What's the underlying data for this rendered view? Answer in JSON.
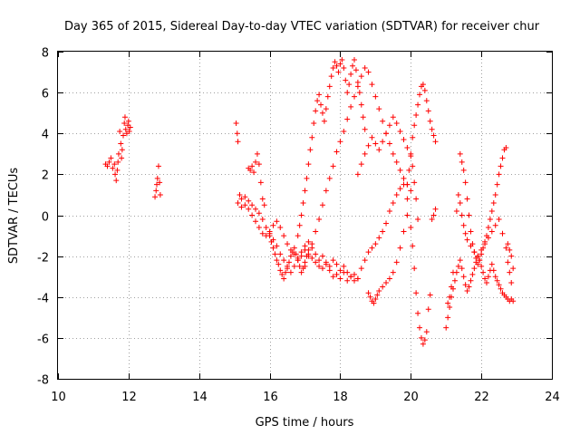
{
  "chart_data": {
    "type": "scatter",
    "title": "Day 365 of 2015, Sidereal Day-to-day VTEC variation (SDTVAR) for receiver chur",
    "xlabel": "GPS time / hours",
    "ylabel": "SDTVAR / TECUs",
    "xlim": [
      10,
      24
    ],
    "ylim": [
      -8,
      8
    ],
    "xticks": [
      "10",
      "12",
      "14",
      "16",
      "18",
      "20",
      "22",
      "24"
    ],
    "yticks": [
      "8",
      "6",
      "4",
      "2",
      "0",
      "-2",
      "-4",
      "-6",
      "-8"
    ],
    "grid": true,
    "marker": "plus",
    "series_color": "#ff0000",
    "series": [
      {
        "name": "SDTVAR",
        "x": [
          11.35,
          11.4,
          11.45,
          11.5,
          11.55,
          11.6,
          11.62,
          11.65,
          11.68,
          11.7,
          11.72,
          11.75,
          11.78,
          11.8,
          11.82,
          11.85,
          11.88,
          11.9,
          11.92,
          11.95,
          11.98,
          12.0,
          12.02,
          12.05,
          12.75,
          12.78,
          12.8,
          12.82,
          12.85,
          12.88,
          12.9,
          15.05,
          15.08,
          15.1,
          15.15,
          15.2,
          15.3,
          15.4,
          15.5,
          15.6,
          15.7,
          15.8,
          15.9,
          16.0,
          16.1,
          16.2,
          16.3,
          16.4,
          16.5,
          16.6,
          16.7,
          16.8,
          16.9,
          17.0,
          17.1,
          17.2,
          17.3,
          17.4,
          17.5,
          17.6,
          17.7,
          17.8,
          17.9,
          18.0,
          18.1,
          18.2,
          18.3,
          18.4,
          18.5,
          18.6,
          18.7,
          18.8,
          18.9,
          19.0,
          19.1,
          19.2,
          19.3,
          19.4,
          19.5,
          19.6,
          19.7,
          19.8,
          19.9,
          20.0,
          20.05,
          20.1,
          20.15,
          20.2,
          20.25,
          20.3,
          20.35,
          20.4,
          20.45,
          20.5,
          20.55,
          15.1,
          15.2,
          15.3,
          15.4,
          15.5,
          15.6,
          15.7,
          15.8,
          15.9,
          16.0,
          16.1,
          16.2,
          16.3,
          16.4,
          16.5,
          16.6,
          16.7,
          16.8,
          16.9,
          17.0,
          17.1,
          17.2,
          17.3,
          17.4,
          17.5,
          17.6,
          17.7,
          17.8,
          17.9,
          18.0,
          18.1,
          18.2,
          18.3,
          18.4,
          18.5,
          15.4,
          15.45,
          15.5,
          15.55,
          15.6,
          15.65,
          15.7,
          15.75,
          15.8,
          15.85,
          16.0,
          16.05,
          16.1,
          16.15,
          16.2,
          16.25,
          16.3,
          16.35,
          16.4,
          16.45,
          16.5,
          16.55,
          16.6,
          16.65,
          16.7,
          16.75,
          16.8,
          16.85,
          16.9,
          16.95,
          17.0,
          17.05,
          17.1,
          16.8,
          16.85,
          16.9,
          16.95,
          17.0,
          17.05,
          17.1,
          17.15,
          17.2,
          17.25,
          17.3,
          17.35,
          17.4,
          17.45,
          17.5,
          17.55,
          17.6,
          17.65,
          17.7,
          17.75,
          17.8,
          17.85,
          17.9,
          17.95,
          18.0,
          18.05,
          18.1,
          18.15,
          18.2,
          18.25,
          18.3,
          18.35,
          18.4,
          18.45,
          18.5,
          18.55,
          18.6,
          18.65,
          18.7,
          17.0,
          17.1,
          17.2,
          17.3,
          17.4,
          17.5,
          17.6,
          17.7,
          17.8,
          17.9,
          18.0,
          18.1,
          18.2,
          18.3,
          18.4,
          18.5,
          18.6,
          18.7,
          18.8,
          18.9,
          19.0,
          19.1,
          19.2,
          19.3,
          19.4,
          19.5,
          19.6,
          19.7,
          19.8,
          19.9,
          20.0,
          18.5,
          18.6,
          18.7,
          18.8,
          18.9,
          19.0,
          19.1,
          19.2,
          19.3,
          19.4,
          19.5,
          19.6,
          19.7,
          19.8,
          19.9,
          20.0,
          20.05,
          20.1,
          20.15,
          20.2,
          18.8,
          18.85,
          18.9,
          18.95,
          19.0,
          19.05,
          19.1,
          19.2,
          19.3,
          19.4,
          19.5,
          19.6,
          19.7,
          19.8,
          19.9,
          19.9,
          19.95,
          20.0,
          20.05,
          20.1,
          20.15,
          20.2,
          20.25,
          20.3,
          20.35,
          20.4,
          20.45,
          20.5,
          20.55,
          20.6,
          20.65,
          20.7,
          20.6,
          20.65,
          20.7,
          21.0,
          21.05,
          21.1,
          21.15,
          21.2,
          21.25,
          21.3,
          21.35,
          21.4,
          21.45,
          21.5,
          21.55,
          21.6,
          21.65,
          21.7,
          21.75,
          21.8,
          21.85,
          21.9,
          21.95,
          22.0,
          22.05,
          22.1,
          22.15,
          22.2,
          22.25,
          22.3,
          22.35,
          22.4,
          22.45,
          22.5,
          22.55,
          22.6,
          22.65,
          22.7,
          22.75,
          22.8,
          22.85,
          22.9,
          21.4,
          21.45,
          21.5,
          21.55,
          21.6,
          21.65,
          21.7,
          21.75,
          21.8,
          21.85,
          21.9,
          21.95,
          22.0,
          22.05,
          22.1,
          22.15,
          22.2,
          22.25,
          22.3,
          22.35,
          22.4,
          22.45,
          22.5,
          22.55,
          22.6,
          22.65,
          22.7,
          22.75,
          22.8,
          22.85,
          21.05,
          21.1,
          21.15,
          21.2,
          21.3,
          21.35,
          21.4,
          21.45,
          21.5,
          21.55,
          21.6,
          21.7,
          21.8,
          21.9,
          22.0,
          22.1,
          22.2,
          22.3,
          22.4,
          22.5,
          22.6,
          22.7,
          22.75,
          22.8,
          22.85,
          22.9
        ],
        "y": [
          2.5,
          2.4,
          2.6,
          2.8,
          2.3,
          2.5,
          2.0,
          1.7,
          2.2,
          2.6,
          3.0,
          4.1,
          3.5,
          2.8,
          3.2,
          3.9,
          4.5,
          4.8,
          4.2,
          4.0,
          4.4,
          4.6,
          4.1,
          4.3,
          0.9,
          1.2,
          1.5,
          1.8,
          2.4,
          1.6,
          1.0,
          4.5,
          4.0,
          3.6,
          1.0,
          0.8,
          0.9,
          0.7,
          0.5,
          0.3,
          0.1,
          -0.2,
          -0.6,
          -0.9,
          -1.2,
          -1.5,
          -1.9,
          -2.2,
          -2.5,
          -2.8,
          -2.5,
          -2.2,
          -2.0,
          -1.7,
          -1.9,
          -2.1,
          -2.3,
          -2.5,
          -2.6,
          -2.4,
          -2.7,
          -3.0,
          -2.9,
          -3.1,
          -2.8,
          -3.2,
          -3.0,
          -2.9,
          -3.1,
          -2.6,
          -2.2,
          -1.8,
          -1.6,
          -1.4,
          -1.1,
          -0.8,
          -0.4,
          0.2,
          0.6,
          1.0,
          1.3,
          1.5,
          0.8,
          -0.6,
          -1.5,
          -2.6,
          -3.8,
          -4.8,
          -5.5,
          -6.0,
          -6.3,
          -6.1,
          -5.7,
          -4.6,
          -3.9,
          0.6,
          0.4,
          0.5,
          0.3,
          0.0,
          -0.3,
          -0.6,
          -0.9,
          -1.0,
          -0.8,
          -0.5,
          -0.3,
          -0.6,
          -1.0,
          -1.4,
          -1.7,
          -1.9,
          -2.1,
          -1.8,
          -1.5,
          -1.3,
          -1.6,
          -1.9,
          -2.2,
          -2.0,
          -2.3,
          -2.5,
          -2.2,
          -2.4,
          -2.7,
          -2.5,
          -2.8,
          -3.0,
          -3.2,
          -3.1,
          2.3,
          2.2,
          2.4,
          2.1,
          2.6,
          3.0,
          2.5,
          1.6,
          0.8,
          0.5,
          -1.0,
          -1.3,
          -1.6,
          -1.9,
          -2.2,
          -2.4,
          -2.7,
          -2.9,
          -3.1,
          -2.8,
          -2.6,
          -2.3,
          -2.0,
          -1.8,
          -1.6,
          -1.9,
          -2.2,
          -2.5,
          -2.8,
          -2.6,
          -2.3,
          -2.0,
          -1.7,
          -1.0,
          -0.5,
          0.0,
          0.6,
          1.2,
          1.8,
          2.5,
          3.2,
          3.8,
          4.5,
          5.1,
          5.6,
          5.9,
          5.4,
          5.0,
          4.6,
          5.2,
          5.8,
          6.3,
          6.8,
          7.2,
          7.5,
          7.3,
          7.0,
          7.4,
          7.6,
          7.2,
          6.6,
          6.0,
          6.4,
          6.9,
          7.3,
          7.6,
          7.1,
          6.5,
          6.0,
          5.4,
          4.8,
          4.2,
          -2.5,
          -2.0,
          -1.4,
          -0.8,
          -0.2,
          0.5,
          1.2,
          1.8,
          2.4,
          3.1,
          3.6,
          4.1,
          4.7,
          5.3,
          5.8,
          6.3,
          6.8,
          7.2,
          7.0,
          6.4,
          5.8,
          5.2,
          4.6,
          4.0,
          3.5,
          3.0,
          2.6,
          2.2,
          1.8,
          1.5,
          1.2,
          2.0,
          2.5,
          3.0,
          3.4,
          3.8,
          3.5,
          3.2,
          3.6,
          4.0,
          4.4,
          4.8,
          4.5,
          4.1,
          3.7,
          3.3,
          2.9,
          2.4,
          1.6,
          0.8,
          -0.2,
          -3.8,
          -4.0,
          -4.2,
          -4.3,
          -4.1,
          -3.9,
          -3.7,
          -3.5,
          -3.3,
          -3.1,
          -2.8,
          -2.3,
          -1.6,
          -0.8,
          0.0,
          1.5,
          2.2,
          3.0,
          3.8,
          4.4,
          4.9,
          5.4,
          5.9,
          6.3,
          6.4,
          6.1,
          5.6,
          5.1,
          4.6,
          4.2,
          3.9,
          3.6,
          -0.2,
          0.0,
          0.3,
          -5.5,
          -5.0,
          -4.5,
          -4.0,
          -3.6,
          -3.2,
          -2.8,
          -2.5,
          -2.2,
          -2.6,
          -3.0,
          -3.4,
          -3.7,
          -3.5,
          -3.2,
          -2.9,
          -2.6,
          -2.3,
          -2.0,
          -2.2,
          -2.5,
          -2.8,
          -3.1,
          -3.3,
          -3.0,
          -2.7,
          -2.4,
          -2.7,
          -3.0,
          -3.2,
          -3.4,
          -3.6,
          -3.8,
          -3.9,
          -4.0,
          -4.1,
          -4.2,
          -4.1,
          -4.2,
          3.0,
          2.6,
          2.2,
          1.6,
          0.8,
          0.0,
          -0.8,
          -1.4,
          -1.8,
          -2.1,
          -2.4,
          -2.2,
          -1.9,
          -1.6,
          -1.3,
          -1.0,
          -0.6,
          -0.2,
          0.2,
          0.6,
          1.0,
          1.5,
          2.0,
          2.4,
          2.8,
          3.2,
          3.3,
          -1.4,
          -1.7,
          -2.0,
          -4.3,
          -4.0,
          -3.5,
          -2.8,
          0.2,
          1.0,
          0.6,
          0.0,
          -0.5,
          -0.9,
          -1.2,
          -1.5,
          -1.8,
          -2.0,
          -1.7,
          -1.4,
          -1.1,
          -0.8,
          -0.5,
          -0.2,
          -0.9,
          -1.6,
          -2.3,
          -2.8,
          -3.3,
          -2.6
        ]
      }
    ]
  }
}
